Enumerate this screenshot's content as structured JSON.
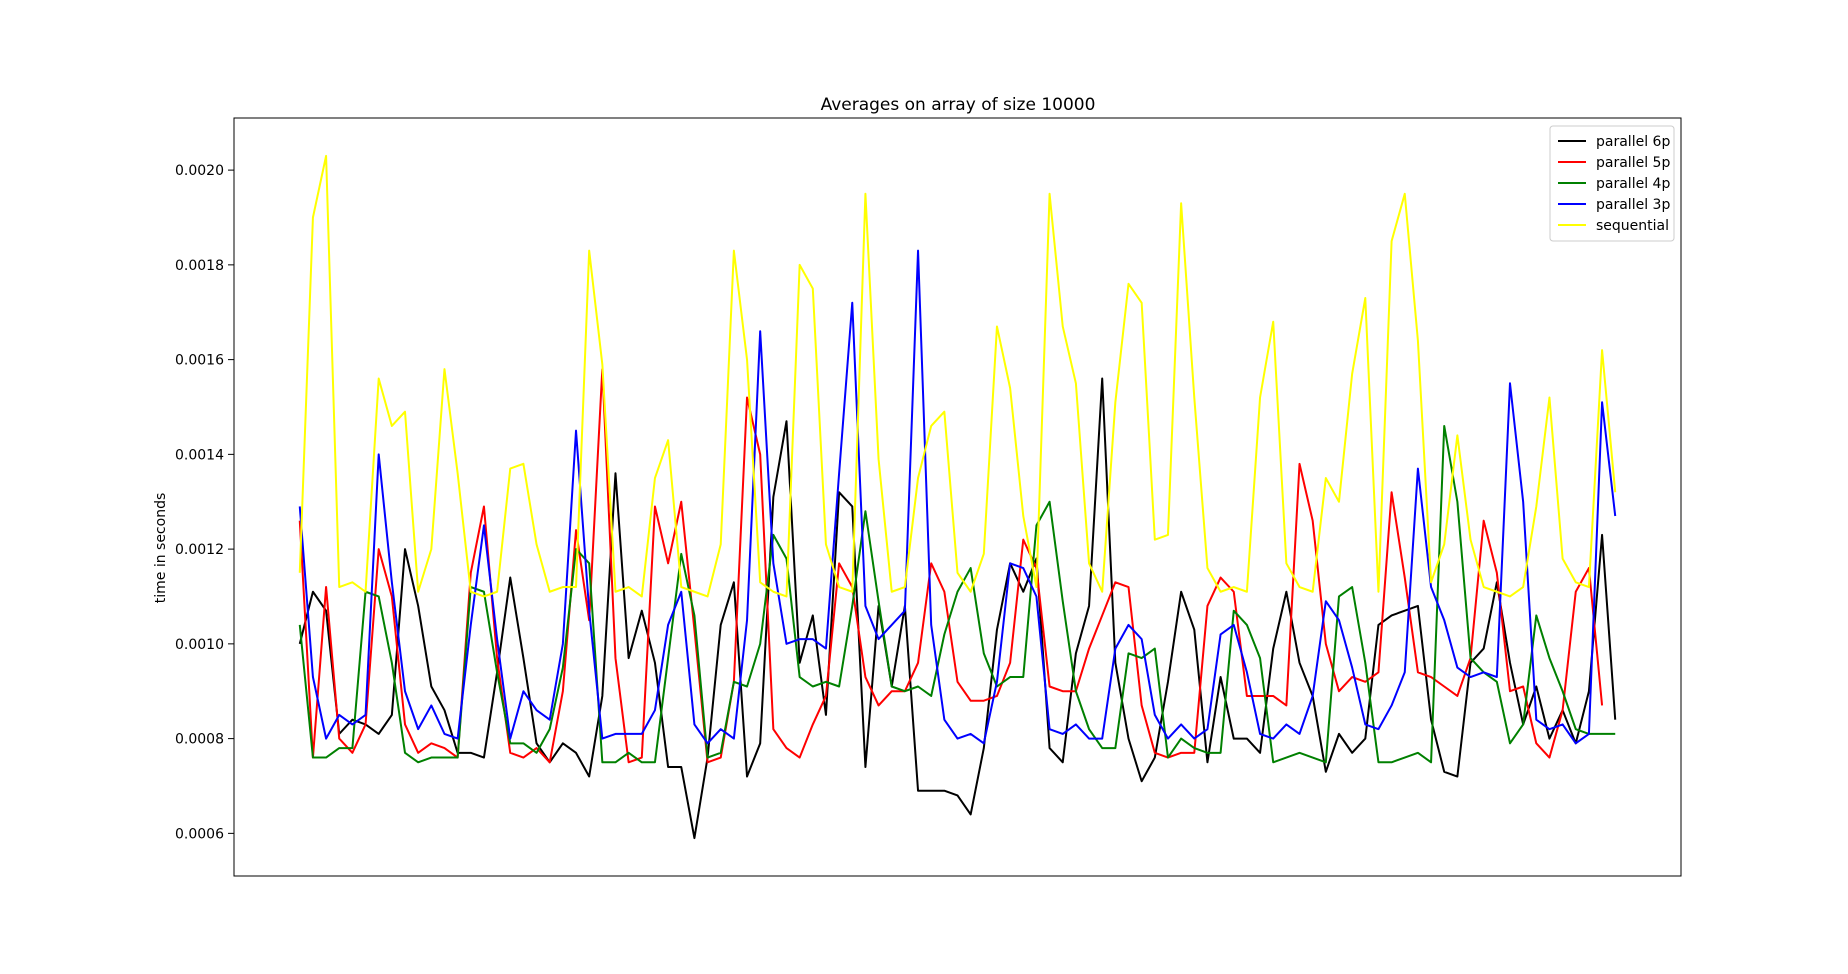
{
  "chart_data": {
    "type": "line",
    "title": "Averages on array of size 10000",
    "xlabel": "",
    "ylabel": "time in seconds",
    "ylim": [
      0.00051,
      0.00211
    ],
    "xlim": [
      -5,
      105
    ],
    "grid": false,
    "legend_position": "top-right",
    "xticks_visible": false,
    "yticks": [
      0.0006,
      0.0008,
      0.001,
      0.0012,
      0.0014,
      0.0016,
      0.0018,
      0.002
    ],
    "ytick_labels": [
      "0.0006",
      "0.0008",
      "0.0010",
      "0.0012",
      "0.0014",
      "0.0016",
      "0.0018",
      "0.0020"
    ],
    "series": [
      {
        "name": "parallel 6p",
        "color": "#000000",
        "values": [
          0.001,
          0.00111,
          0.00107,
          0.00081,
          0.00084,
          0.00083,
          0.00081,
          0.00085,
          0.0012,
          0.00108,
          0.00091,
          0.00086,
          0.00077,
          0.00077,
          0.00076,
          0.00094,
          0.00114,
          0.00097,
          0.00079,
          0.00075,
          0.00079,
          0.00077,
          0.00072,
          0.00089,
          0.00136,
          0.00097,
          0.00107,
          0.00096,
          0.00074,
          0.00074,
          0.00059,
          0.00076,
          0.00104,
          0.00113,
          0.00072,
          0.00079,
          0.00131,
          0.00147,
          0.00096,
          0.00106,
          0.00085,
          0.00132,
          0.00129,
          0.00074,
          0.00108,
          0.00091,
          0.00108,
          0.00069,
          0.00069,
          0.00069,
          0.00068,
          0.00064,
          0.00078,
          0.00103,
          0.00117,
          0.00111,
          0.00118,
          0.00078,
          0.00075,
          0.00098,
          0.00108,
          0.00156,
          0.00096,
          0.0008,
          0.00071,
          0.00076,
          0.00092,
          0.00111,
          0.00103,
          0.00075,
          0.00093,
          0.0008,
          0.0008,
          0.00077,
          0.00099,
          0.00111,
          0.00096,
          0.00089,
          0.00073,
          0.00081,
          0.00077,
          0.0008,
          0.00104,
          0.00106,
          0.00107,
          0.00108,
          0.00084,
          0.00073,
          0.00072,
          0.00096,
          0.00099,
          0.00113,
          0.00096,
          0.00083,
          0.00091,
          0.0008,
          0.00086,
          0.00079,
          0.0009,
          0.00123,
          0.00084
        ]
      },
      {
        "name": "parallel 5p",
        "color": "#ff0000",
        "values": [
          0.00126,
          0.00076,
          0.00112,
          0.0008,
          0.00077,
          0.00083,
          0.0012,
          0.0011,
          0.00083,
          0.00077,
          0.00079,
          0.00078,
          0.00076,
          0.00115,
          0.00129,
          0.00097,
          0.00077,
          0.00076,
          0.00078,
          0.00075,
          0.0009,
          0.00124,
          0.00105,
          0.00158,
          0.00097,
          0.00075,
          0.00076,
          0.00129,
          0.00117,
          0.0013,
          0.00103,
          0.00075,
          0.00076,
          0.00092,
          0.00152,
          0.0014,
          0.00082,
          0.00078,
          0.00076,
          0.00083,
          0.00089,
          0.00117,
          0.00112,
          0.00093,
          0.00087,
          0.0009,
          0.0009,
          0.00096,
          0.00117,
          0.00111,
          0.00092,
          0.00088,
          0.00088,
          0.00089,
          0.00096,
          0.00122,
          0.00116,
          0.00091,
          0.0009,
          0.0009,
          0.00099,
          0.00106,
          0.00113,
          0.00112,
          0.00087,
          0.00077,
          0.00076,
          0.00077,
          0.00077,
          0.00108,
          0.00114,
          0.00111,
          0.00089,
          0.00089,
          0.00089,
          0.00087,
          0.00138,
          0.00126,
          0.001,
          0.0009,
          0.00093,
          0.00092,
          0.00094,
          0.00132,
          0.00114,
          0.00094,
          0.00093,
          0.00091,
          0.00089,
          0.00097,
          0.00126,
          0.00115,
          0.0009,
          0.00091,
          0.00079,
          0.00076,
          0.00086,
          0.00111,
          0.00116,
          0.00087
        ]
      },
      {
        "name": "parallel 4p",
        "color": "#008000",
        "values": [
          0.00104,
          0.00076,
          0.00076,
          0.00078,
          0.00078,
          0.00111,
          0.0011,
          0.00096,
          0.00077,
          0.00075,
          0.00076,
          0.00076,
          0.00076,
          0.00112,
          0.00111,
          0.00094,
          0.00079,
          0.00079,
          0.00077,
          0.00082,
          0.00095,
          0.0012,
          0.00117,
          0.00075,
          0.00075,
          0.00077,
          0.00075,
          0.00075,
          0.00097,
          0.00119,
          0.00106,
          0.00076,
          0.00077,
          0.00092,
          0.00091,
          0.001,
          0.00123,
          0.00118,
          0.00093,
          0.00091,
          0.00092,
          0.00091,
          0.00108,
          0.00128,
          0.00109,
          0.00091,
          0.0009,
          0.00091,
          0.00089,
          0.00102,
          0.00111,
          0.00116,
          0.00098,
          0.00091,
          0.00093,
          0.00093,
          0.00125,
          0.0013,
          0.00109,
          0.0009,
          0.00082,
          0.00078,
          0.00078,
          0.00098,
          0.00097,
          0.00099,
          0.00076,
          0.0008,
          0.00078,
          0.00077,
          0.00077,
          0.00107,
          0.00104,
          0.00097,
          0.00075,
          0.00076,
          0.00077,
          0.00076,
          0.00075,
          0.0011,
          0.00112,
          0.00096,
          0.00075,
          0.00075,
          0.00076,
          0.00077,
          0.00075,
          0.00146,
          0.0013,
          0.00097,
          0.00094,
          0.00092,
          0.00079,
          0.00083,
          0.00106,
          0.00097,
          0.0009,
          0.00082,
          0.00081,
          0.00081,
          0.00081
        ]
      },
      {
        "name": "parallel 3p",
        "color": "#0000ff",
        "values": [
          0.00129,
          0.00093,
          0.0008,
          0.00085,
          0.00083,
          0.00085,
          0.0014,
          0.00113,
          0.0009,
          0.00082,
          0.00087,
          0.00081,
          0.0008,
          0.00104,
          0.00125,
          0.00101,
          0.0008,
          0.0009,
          0.00086,
          0.00084,
          0.001,
          0.00145,
          0.00107,
          0.0008,
          0.00081,
          0.00081,
          0.00081,
          0.00086,
          0.00104,
          0.00111,
          0.00083,
          0.00079,
          0.00082,
          0.0008,
          0.00105,
          0.00166,
          0.00117,
          0.001,
          0.00101,
          0.00101,
          0.00099,
          0.00136,
          0.00172,
          0.00108,
          0.00101,
          0.00104,
          0.00107,
          0.00183,
          0.00104,
          0.00084,
          0.0008,
          0.00081,
          0.00079,
          0.00092,
          0.00117,
          0.00116,
          0.0011,
          0.00082,
          0.00081,
          0.00083,
          0.0008,
          0.0008,
          0.00099,
          0.00104,
          0.00101,
          0.00085,
          0.0008,
          0.00083,
          0.0008,
          0.00082,
          0.00102,
          0.00104,
          0.00094,
          0.00081,
          0.0008,
          0.00083,
          0.00081,
          0.00089,
          0.00109,
          0.00105,
          0.00095,
          0.00083,
          0.00082,
          0.00087,
          0.00094,
          0.00137,
          0.00112,
          0.00105,
          0.00095,
          0.00093,
          0.00094,
          0.00093,
          0.00155,
          0.0013,
          0.00084,
          0.00082,
          0.00083,
          0.00079,
          0.00081,
          0.00151,
          0.00127
        ]
      },
      {
        "name": "sequential",
        "color": "#ffff00",
        "values": [
          0.00115,
          0.0019,
          0.00203,
          0.00112,
          0.00113,
          0.00111,
          0.00156,
          0.00146,
          0.00149,
          0.00111,
          0.0012,
          0.00158,
          0.00136,
          0.00111,
          0.0011,
          0.00111,
          0.00137,
          0.00138,
          0.00121,
          0.00111,
          0.00112,
          0.00112,
          0.00183,
          0.00159,
          0.00111,
          0.00112,
          0.0011,
          0.00135,
          0.00143,
          0.00112,
          0.00111,
          0.0011,
          0.00121,
          0.00183,
          0.0016,
          0.00113,
          0.00111,
          0.0011,
          0.0018,
          0.00175,
          0.00121,
          0.00112,
          0.00111,
          0.00195,
          0.00139,
          0.00111,
          0.00112,
          0.00135,
          0.00146,
          0.00149,
          0.00115,
          0.00111,
          0.00119,
          0.00167,
          0.00154,
          0.00127,
          0.00112,
          0.00195,
          0.00167,
          0.00155,
          0.00117,
          0.00111,
          0.00151,
          0.00176,
          0.00172,
          0.00122,
          0.00123,
          0.00193,
          0.00152,
          0.00116,
          0.00111,
          0.00112,
          0.00111,
          0.00152,
          0.00168,
          0.00117,
          0.00112,
          0.00111,
          0.00135,
          0.0013,
          0.00157,
          0.00173,
          0.00111,
          0.00185,
          0.00195,
          0.00164,
          0.00113,
          0.00121,
          0.00144,
          0.00122,
          0.00112,
          0.00111,
          0.0011,
          0.00112,
          0.00129,
          0.00152,
          0.00118,
          0.00113,
          0.00112,
          0.00162,
          0.00132
        ]
      }
    ]
  }
}
